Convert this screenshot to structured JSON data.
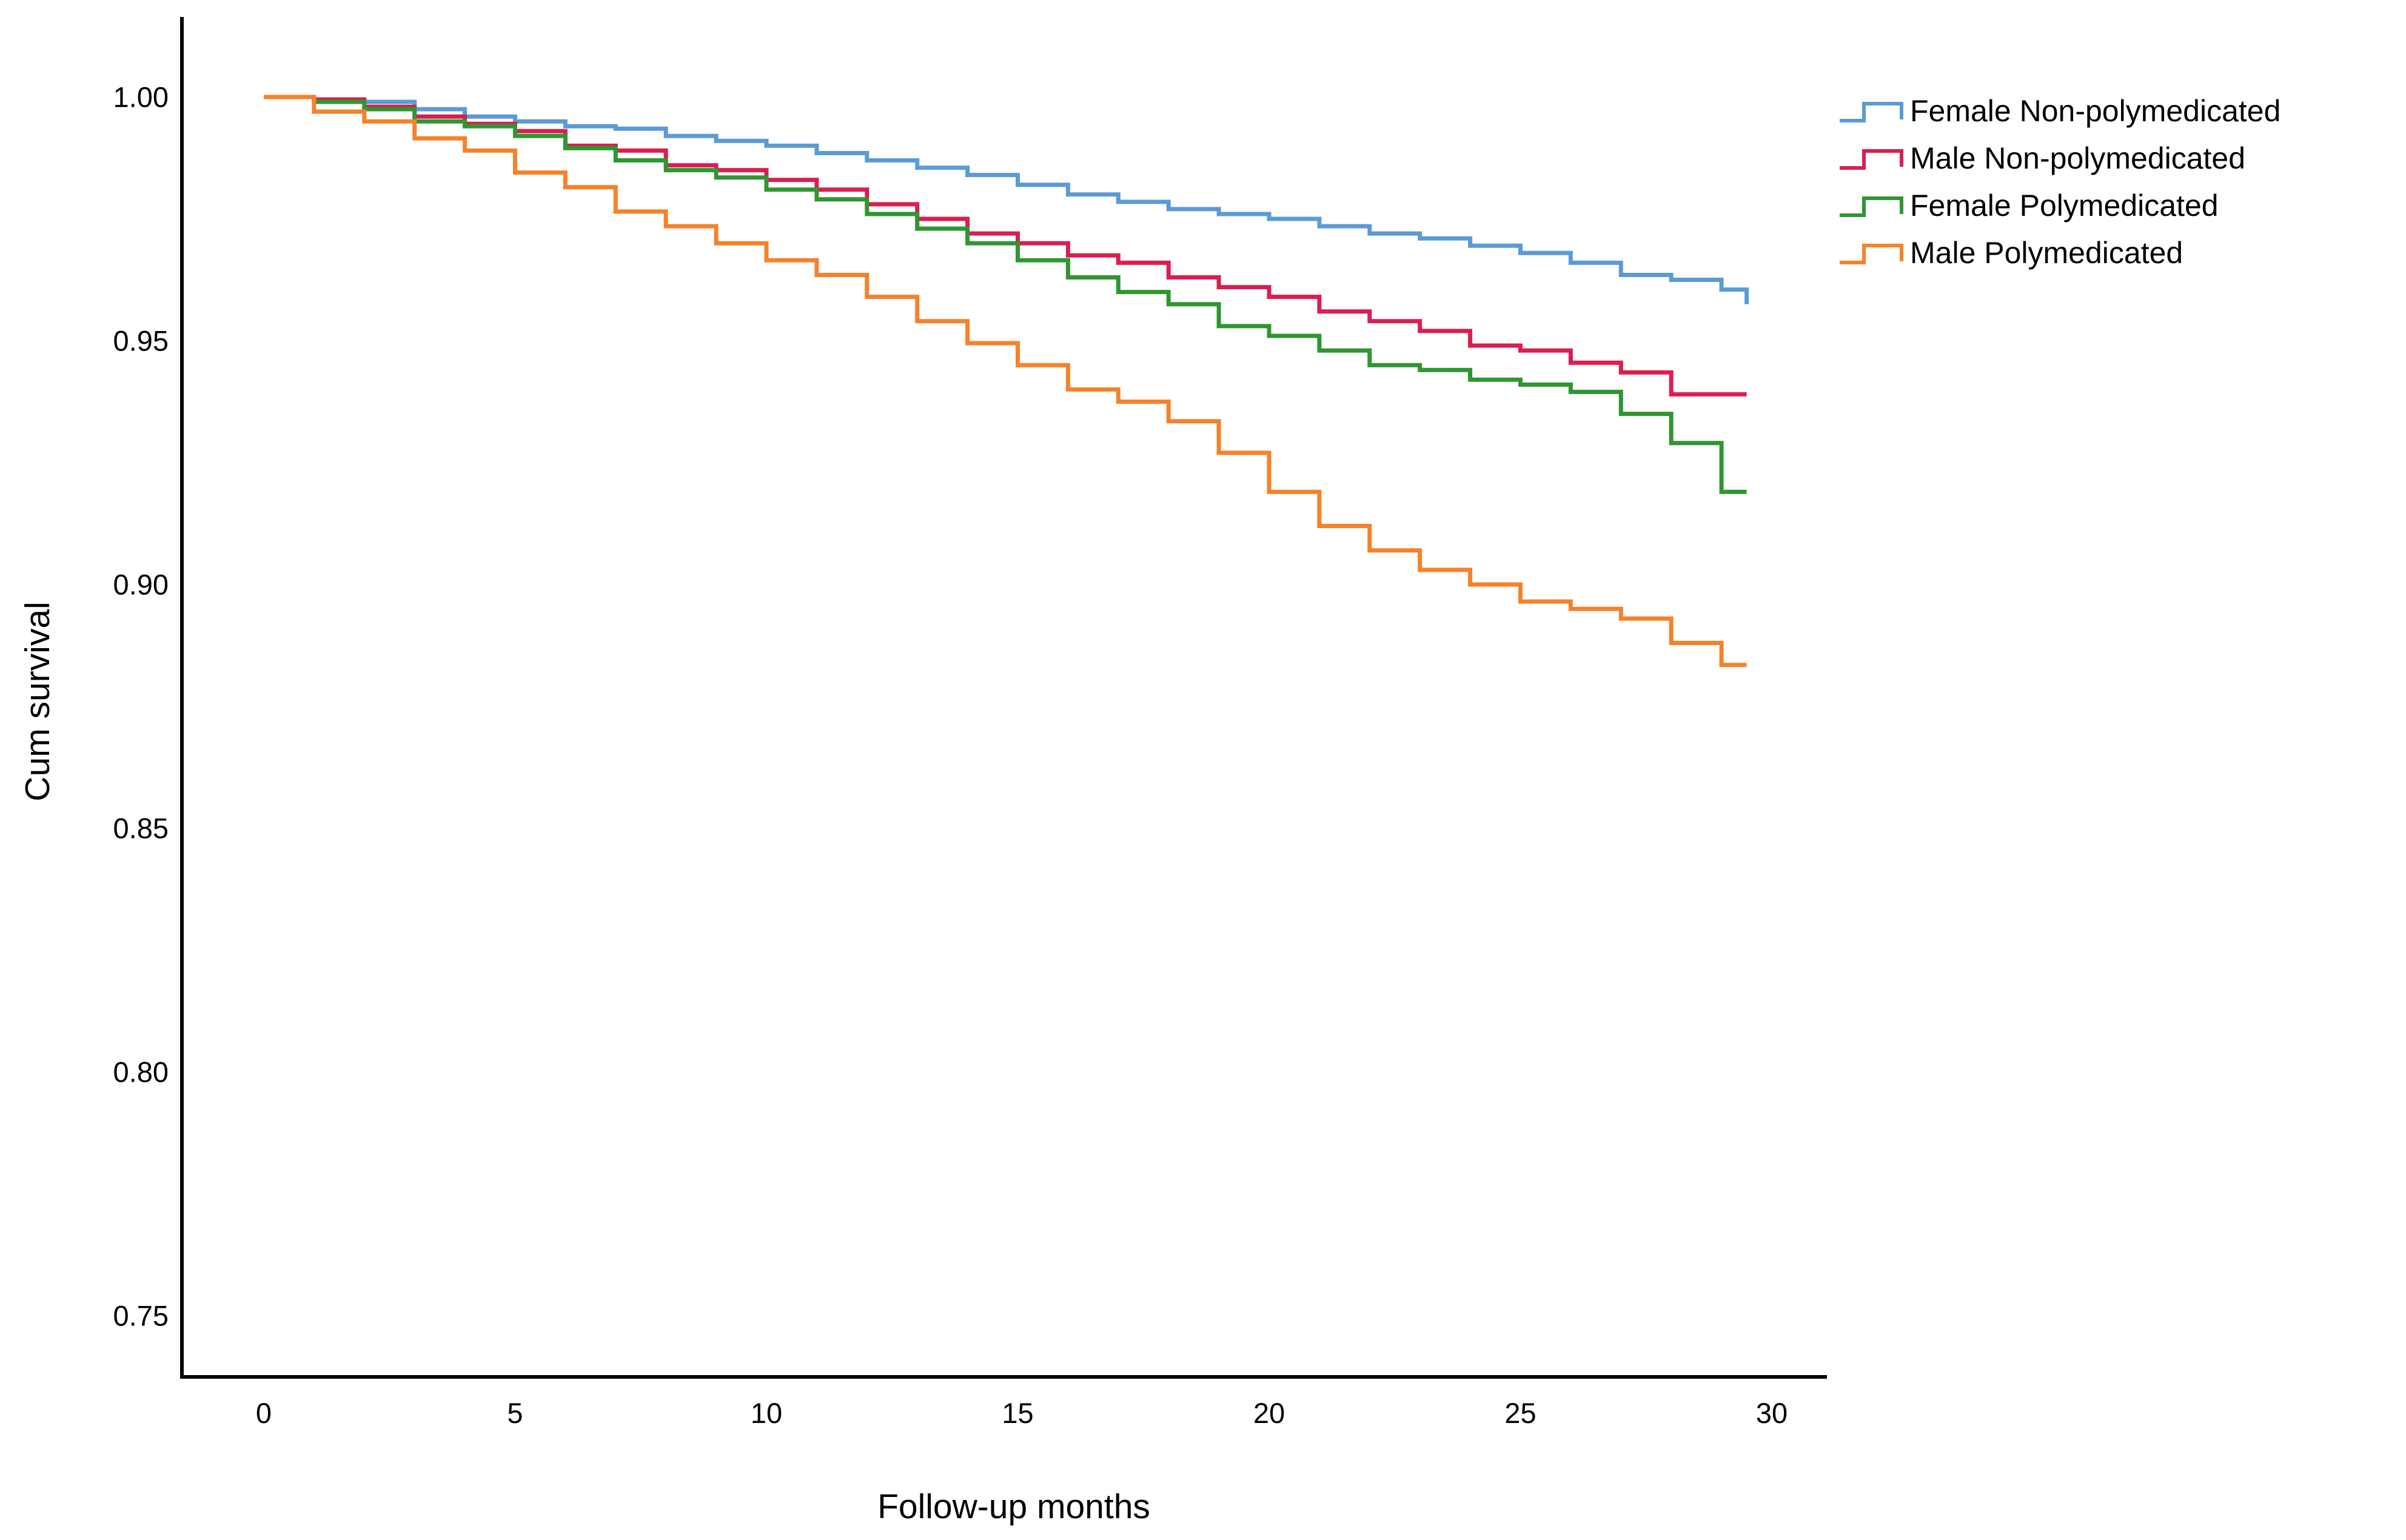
{
  "chart_data": {
    "type": "line",
    "subtype": "kaplan-meier-step",
    "title": "",
    "xlabel": "Follow-up months",
    "ylabel": "Cum survival",
    "xlim": [
      0,
      30
    ],
    "ylim": [
      0.74,
      1.01
    ],
    "grid": false,
    "legend_position": "right",
    "xtick_labels": [
      "0",
      "5",
      "10",
      "15",
      "20",
      "25",
      "30"
    ],
    "ytick_labels": [
      "1.00",
      "0.95",
      "0.90",
      "0.85",
      "0.80",
      "0.75"
    ],
    "series": [
      {
        "name": "Female Non-polymedicated",
        "color": "#5B9BD5",
        "steps": [
          [
            0,
            1.0
          ],
          [
            1,
            0.9995
          ],
          [
            2,
            0.999
          ],
          [
            3,
            0.9975
          ],
          [
            4,
            0.996
          ],
          [
            5,
            0.995
          ],
          [
            6,
            0.994
          ],
          [
            7,
            0.9935
          ],
          [
            8,
            0.992
          ],
          [
            9,
            0.991
          ],
          [
            10,
            0.99
          ],
          [
            11,
            0.9885
          ],
          [
            12,
            0.987
          ],
          [
            13,
            0.9855
          ],
          [
            14,
            0.984
          ],
          [
            15,
            0.982
          ],
          [
            16,
            0.98
          ],
          [
            17,
            0.9785
          ],
          [
            18,
            0.977
          ],
          [
            19,
            0.976
          ],
          [
            20,
            0.975
          ],
          [
            21,
            0.9735
          ],
          [
            22,
            0.972
          ],
          [
            23,
            0.971
          ],
          [
            24,
            0.9695
          ],
          [
            25,
            0.968
          ],
          [
            26,
            0.966
          ],
          [
            27,
            0.9635
          ],
          [
            28,
            0.9625
          ],
          [
            29,
            0.9605
          ],
          [
            29.5,
            0.9575
          ]
        ]
      },
      {
        "name": "Male Non-polymedicated",
        "color": "#D91E50",
        "steps": [
          [
            0,
            1.0
          ],
          [
            1,
            0.9995
          ],
          [
            2,
            0.998
          ],
          [
            3,
            0.996
          ],
          [
            4,
            0.9945
          ],
          [
            5,
            0.993
          ],
          [
            6,
            0.99
          ],
          [
            7,
            0.989
          ],
          [
            8,
            0.986
          ],
          [
            9,
            0.985
          ],
          [
            10,
            0.983
          ],
          [
            11,
            0.981
          ],
          [
            12,
            0.978
          ],
          [
            13,
            0.975
          ],
          [
            14,
            0.972
          ],
          [
            15,
            0.97
          ],
          [
            16,
            0.9675
          ],
          [
            17,
            0.966
          ],
          [
            18,
            0.963
          ],
          [
            19,
            0.961
          ],
          [
            20,
            0.959
          ],
          [
            21,
            0.956
          ],
          [
            22,
            0.954
          ],
          [
            23,
            0.952
          ],
          [
            24,
            0.949
          ],
          [
            25,
            0.948
          ],
          [
            26,
            0.9455
          ],
          [
            27,
            0.9435
          ],
          [
            28,
            0.939
          ],
          [
            29.5,
            0.939
          ]
        ]
      },
      {
        "name": "Female Polymedicated",
        "color": "#2F9632",
        "steps": [
          [
            0,
            1.0
          ],
          [
            1,
            0.999
          ],
          [
            2,
            0.9975
          ],
          [
            3,
            0.995
          ],
          [
            4,
            0.994
          ],
          [
            5,
            0.992
          ],
          [
            6,
            0.9895
          ],
          [
            7,
            0.987
          ],
          [
            8,
            0.985
          ],
          [
            9,
            0.9835
          ],
          [
            10,
            0.981
          ],
          [
            11,
            0.979
          ],
          [
            12,
            0.976
          ],
          [
            13,
            0.973
          ],
          [
            14,
            0.97
          ],
          [
            15,
            0.9665
          ],
          [
            16,
            0.963
          ],
          [
            17,
            0.96
          ],
          [
            18,
            0.9575
          ],
          [
            19,
            0.953
          ],
          [
            20,
            0.951
          ],
          [
            21,
            0.948
          ],
          [
            22,
            0.945
          ],
          [
            23,
            0.944
          ],
          [
            24,
            0.942
          ],
          [
            25,
            0.941
          ],
          [
            26,
            0.9395
          ],
          [
            27,
            0.935
          ],
          [
            28,
            0.929
          ],
          [
            29,
            0.919
          ],
          [
            29.5,
            0.919
          ]
        ]
      },
      {
        "name": "Male Polymedicated",
        "color": "#F5822A",
        "steps": [
          [
            0,
            1.0
          ],
          [
            1,
            0.997
          ],
          [
            2,
            0.995
          ],
          [
            3,
            0.9915
          ],
          [
            4,
            0.989
          ],
          [
            5,
            0.9845
          ],
          [
            6,
            0.9815
          ],
          [
            7,
            0.9765
          ],
          [
            8,
            0.9735
          ],
          [
            9,
            0.97
          ],
          [
            10,
            0.9665
          ],
          [
            11,
            0.9635
          ],
          [
            12,
            0.959
          ],
          [
            13,
            0.954
          ],
          [
            14,
            0.9495
          ],
          [
            15,
            0.945
          ],
          [
            16,
            0.94
          ],
          [
            17,
            0.9375
          ],
          [
            18,
            0.9335
          ],
          [
            19,
            0.927
          ],
          [
            20,
            0.919
          ],
          [
            21,
            0.912
          ],
          [
            22,
            0.907
          ],
          [
            23,
            0.903
          ],
          [
            24,
            0.9
          ],
          [
            25,
            0.8965
          ],
          [
            26,
            0.895
          ],
          [
            27,
            0.893
          ],
          [
            28,
            0.888
          ],
          [
            29,
            0.8835
          ],
          [
            29.5,
            0.8835
          ]
        ]
      }
    ]
  }
}
